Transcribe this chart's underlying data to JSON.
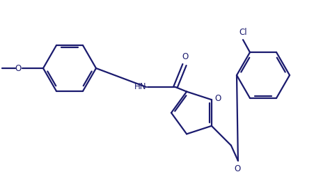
{
  "background_color": "#ffffff",
  "line_color": "#1a1a6e",
  "line_width": 1.6,
  "font_size": 8.5,
  "figsize": [
    4.74,
    2.7
  ],
  "dpi": 100,
  "xlim": [
    0,
    4.74
  ],
  "ylim": [
    0,
    2.7
  ]
}
